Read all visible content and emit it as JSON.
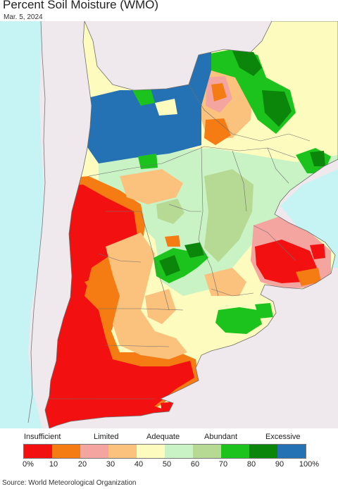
{
  "header": {
    "title": "Percent Soil Moisture (WMO)",
    "date": "Mar. 5, 2024"
  },
  "map": {
    "colors": {
      "ocean": "#c6f3f3",
      "land_outside": "#efe8ec",
      "border": "#6e6e6e"
    }
  },
  "legend": {
    "categories": [
      "Insufficient",
      "Limited",
      "Adequate",
      "Abundant",
      "Excessive"
    ],
    "ticks": [
      "0%",
      "10",
      "20",
      "30",
      "40",
      "50",
      "60",
      "70",
      "80",
      "90",
      "100%"
    ],
    "bins": [
      {
        "range": "0-10",
        "color": "#f21010"
      },
      {
        "range": "10-20",
        "color": "#f47c12"
      },
      {
        "range": "20-30",
        "color": "#f5a5a0"
      },
      {
        "range": "30-40",
        "color": "#fac27c"
      },
      {
        "range": "40-50",
        "color": "#fdfbbe"
      },
      {
        "range": "50-60",
        "color": "#c9f3c4"
      },
      {
        "range": "60-70",
        "color": "#b6d994"
      },
      {
        "range": "70-80",
        "color": "#1dc31d"
      },
      {
        "range": "80-90",
        "color": "#0b860b"
      },
      {
        "range": "90-100",
        "color": "#2472b4"
      }
    ]
  },
  "footer": {
    "source": "Source: World Meteorological Organization"
  }
}
